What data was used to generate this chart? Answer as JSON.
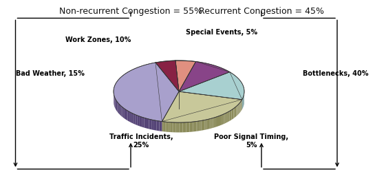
{
  "slices": [
    {
      "label": "Traffic Incidents,\n25%",
      "value": 25,
      "color": "#c8c89a",
      "dark_color": "#8b8b5a",
      "explode": 0.04
    },
    {
      "label": "Bad Weather, 15%",
      "value": 15,
      "color": "#a8d0d0",
      "dark_color": "#5a8888",
      "explode": 0.04
    },
    {
      "label": "Work Zones, 10%",
      "value": 10,
      "color": "#884488",
      "dark_color": "#552255",
      "explode": 0.04
    },
    {
      "label": "Special Events, 5%",
      "value": 5,
      "color": "#e09080",
      "dark_color": "#aa5544",
      "explode": 0.04
    },
    {
      "label": "Poor Signal Timing,\n5%",
      "value": 5,
      "color": "#882244",
      "dark_color": "#551122",
      "explode": 0.04
    },
    {
      "label": "Bottlenecks, 40%",
      "value": 40,
      "color": "#a8a0cc",
      "dark_color": "#554477",
      "explode": 0.04
    }
  ],
  "nonrecurrent_label": "Non-recurrent Congestion = 55%",
  "recurrent_label": "Recurrent Congestion = 45%",
  "background_color": "#ffffff",
  "label_fontsize": 7.0,
  "header_fontsize": 9.0
}
